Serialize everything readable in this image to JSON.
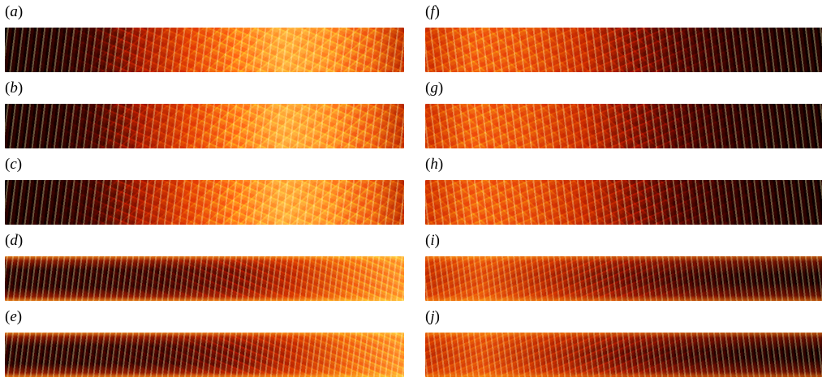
{
  "panels_left": [
    {
      "letter": "a"
    },
    {
      "letter": "b"
    },
    {
      "letter": "c"
    },
    {
      "letter": "d"
    },
    {
      "letter": "e"
    }
  ],
  "panels_right": [
    {
      "letter": "f"
    },
    {
      "letter": "g"
    },
    {
      "letter": "h"
    },
    {
      "letter": "i"
    },
    {
      "letter": "j"
    }
  ],
  "paren_open": "(",
  "paren_close": ")",
  "colormap": {
    "low": "#0c0000",
    "mid_dark": "#8a1200",
    "mid": "#e44a05",
    "high": "#ffb545",
    "peak": "#fff6d8"
  }
}
